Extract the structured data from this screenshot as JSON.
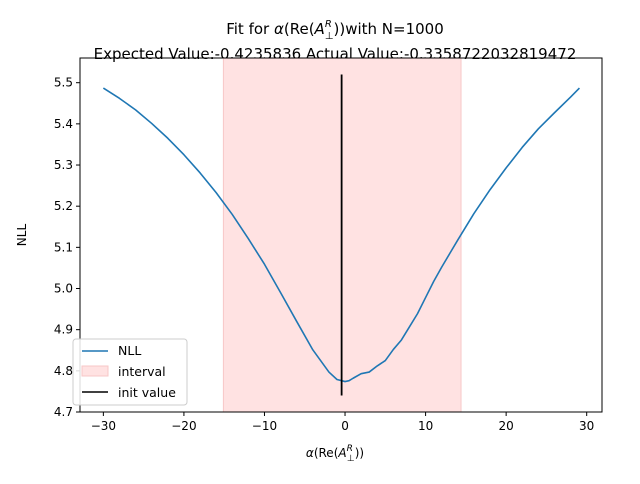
{
  "chart_data": {
    "type": "line",
    "title": {
      "prefix": "Fit for ",
      "alpha": "α",
      "re_open": "(Re(",
      "A": "A",
      "sup": "R",
      "sub": "⊥",
      "re_close": "))",
      "suffix": "with N=1000"
    },
    "subtitle": "Expected Value:-0.4235836 Actual Value:-0.3358722032819472",
    "xlabel": {
      "alpha": "α",
      "re_open": "(Re(",
      "A": "A",
      "sup": "R",
      "sub": "⊥",
      "re_close": "))"
    },
    "ylabel": "NLL",
    "xlim": [
      -32.9,
      31.9
    ],
    "ylim": [
      4.7,
      5.56
    ],
    "x_ticks": [
      -30,
      -20,
      -10,
      0,
      10,
      20,
      30
    ],
    "x_tick_labels": [
      "−30",
      "−20",
      "−10",
      "0",
      "10",
      "20",
      "30"
    ],
    "y_ticks": [
      4.7,
      4.8,
      4.9,
      5.0,
      5.1,
      5.2,
      5.3,
      5.4,
      5.5
    ],
    "y_tick_labels": [
      "4.7",
      "4.8",
      "4.9",
      "5.0",
      "5.1",
      "5.2",
      "5.3",
      "5.4",
      "5.5"
    ],
    "grid": false,
    "legend_position": "lower-left",
    "series": [
      {
        "name": "NLL",
        "color": "#1f77b4",
        "points": [
          [
            -30,
            5.487
          ],
          [
            -28,
            5.462
          ],
          [
            -26,
            5.434
          ],
          [
            -24,
            5.401
          ],
          [
            -22,
            5.365
          ],
          [
            -20,
            5.325
          ],
          [
            -18,
            5.281
          ],
          [
            -16,
            5.233
          ],
          [
            -14,
            5.18
          ],
          [
            -12,
            5.121
          ],
          [
            -10,
            5.059
          ],
          [
            -8,
            4.99
          ],
          [
            -6,
            4.92
          ],
          [
            -4,
            4.851
          ],
          [
            -2,
            4.797
          ],
          [
            -1,
            4.779
          ],
          [
            0,
            4.774
          ],
          [
            0.5,
            4.776
          ],
          [
            1,
            4.782
          ],
          [
            2,
            4.793
          ],
          [
            3,
            4.797
          ],
          [
            4,
            4.812
          ],
          [
            5,
            4.825
          ],
          [
            6,
            4.852
          ],
          [
            7,
            4.875
          ],
          [
            8,
            4.907
          ],
          [
            9,
            4.939
          ],
          [
            10,
            4.978
          ],
          [
            11,
            5.017
          ],
          [
            12,
            5.052
          ],
          [
            13,
            5.085
          ],
          [
            14,
            5.118
          ],
          [
            16,
            5.182
          ],
          [
            18,
            5.24
          ],
          [
            20,
            5.293
          ],
          [
            22,
            5.343
          ],
          [
            24,
            5.388
          ],
          [
            26,
            5.427
          ],
          [
            28,
            5.465
          ],
          [
            29.1,
            5.487
          ]
        ]
      }
    ],
    "interval": {
      "name": "interval",
      "x_start": -15.1,
      "x_end": 14.4,
      "color": "#ffe2e2",
      "edge_color": "#f7c7c7"
    },
    "init_value": {
      "name": "init value",
      "x": -0.4235836,
      "y_start": 4.74,
      "y_end": 5.52,
      "color": "#000000"
    },
    "legend": [
      "NLL",
      "interval",
      "init value"
    ]
  }
}
